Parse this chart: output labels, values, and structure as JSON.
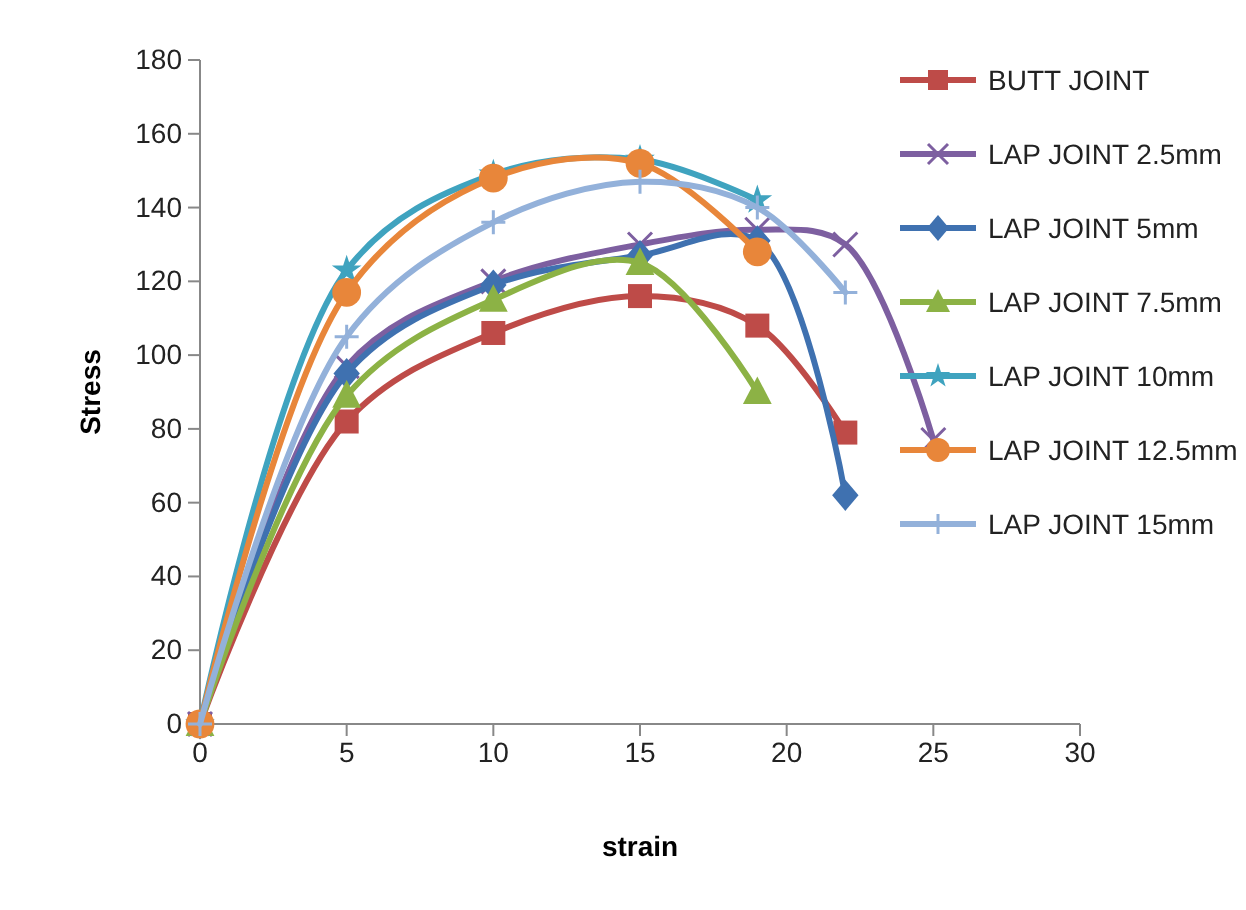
{
  "chart_data": {
    "type": "line",
    "xlabel": "strain",
    "ylabel": "Stress",
    "xlim": [
      0,
      30
    ],
    "xticks": [
      0,
      5,
      10,
      15,
      20,
      25,
      30
    ],
    "ylim": [
      0,
      180
    ],
    "yticks": [
      0,
      20,
      40,
      60,
      80,
      100,
      120,
      140,
      160,
      180
    ],
    "legend": "right",
    "grid": false,
    "series": [
      {
        "name": "BUTT JOINT",
        "color": "#be4b48",
        "marker": "square",
        "x": [
          0,
          5,
          10,
          15,
          19,
          22
        ],
        "values": [
          0,
          82,
          106,
          116,
          108,
          79
        ]
      },
      {
        "name": "LAP JOINT 2.5mm",
        "color": "#7d5fa0",
        "marker": "cross",
        "x": [
          0,
          5,
          10,
          15,
          19,
          22,
          25
        ],
        "values": [
          0,
          97,
          120,
          130,
          134,
          130,
          77
        ]
      },
      {
        "name": "LAP JOINT 5mm",
        "color": "#3f71b0",
        "marker": "diamond",
        "x": [
          0,
          5,
          10,
          15,
          19,
          22
        ],
        "values": [
          0,
          95,
          119,
          127,
          131,
          62
        ]
      },
      {
        "name": "LAP JOINT 7.5mm",
        "color": "#8cb245",
        "marker": "triangle",
        "x": [
          0,
          5,
          10,
          15,
          19
        ],
        "values": [
          0,
          89,
          115,
          125,
          90
        ]
      },
      {
        "name": "LAP JOINT 10mm",
        "color": "#3fa3bf",
        "marker": "star",
        "x": [
          0,
          5,
          10,
          15,
          19
        ],
        "values": [
          0,
          123,
          149,
          153,
          142
        ]
      },
      {
        "name": "LAP JOINT 12.5mm",
        "color": "#e8863a",
        "marker": "circle",
        "x": [
          0,
          5,
          10,
          15,
          19
        ],
        "values": [
          0,
          117,
          148,
          152,
          128
        ]
      },
      {
        "name": "LAP JOINT 15mm",
        "color": "#93b1da",
        "marker": "plus",
        "x": [
          0,
          5,
          10,
          15,
          19,
          22
        ],
        "values": [
          0,
          105,
          136,
          147,
          140,
          117
        ]
      }
    ]
  }
}
